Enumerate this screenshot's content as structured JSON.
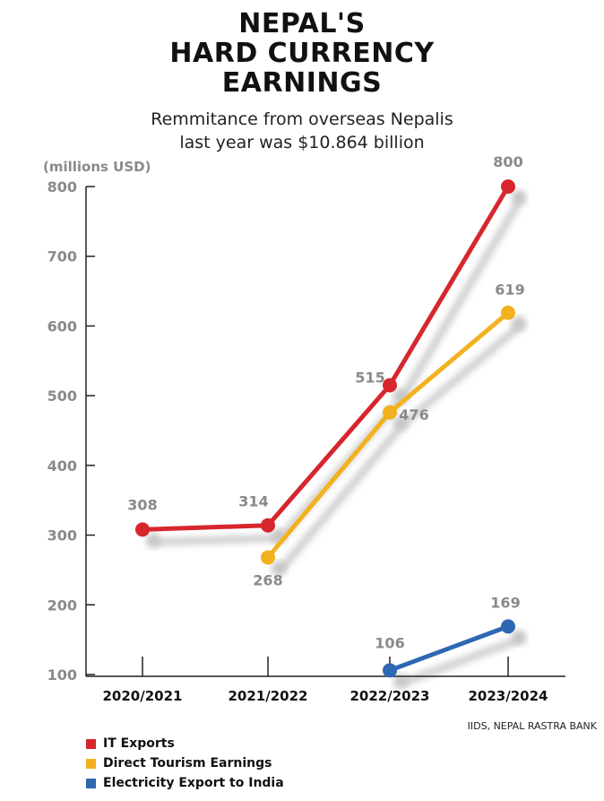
{
  "header": {
    "title_lines": [
      "NEPAL'S",
      "HARD CURRENCY",
      "EARNINGS"
    ],
    "subtitle_lines": [
      "Remmitance from overseas Nepalis",
      "last year was $10.864 billion"
    ]
  },
  "source": "IIDS, NEPAL RASTRA BANK",
  "chart_data": {
    "type": "line",
    "title": "NEPAL'S HARD CURRENCY EARNINGS",
    "subtitle": "Remmitance from overseas Nepalis last year was $10.864 billion",
    "ylabel": "(millions USD)",
    "xlabel": "",
    "categories": [
      "2020/2021",
      "2021/2022",
      "2022/2023",
      "2023/2024"
    ],
    "ylim": [
      100,
      800
    ],
    "yticks": [
      100,
      200,
      300,
      400,
      500,
      600,
      700,
      800
    ],
    "grid": false,
    "legend_position": "bottom-left",
    "series": [
      {
        "name": "IT Exports",
        "color": "#d7262d",
        "values": [
          308,
          314,
          515,
          800
        ]
      },
      {
        "name": "Direct Tourism Earnings",
        "color": "#f2b21f",
        "values": [
          null,
          268,
          476,
          619
        ]
      },
      {
        "name": "Electricity Export to India",
        "color": "#2e67b2",
        "values": [
          null,
          null,
          106,
          169
        ]
      }
    ]
  }
}
